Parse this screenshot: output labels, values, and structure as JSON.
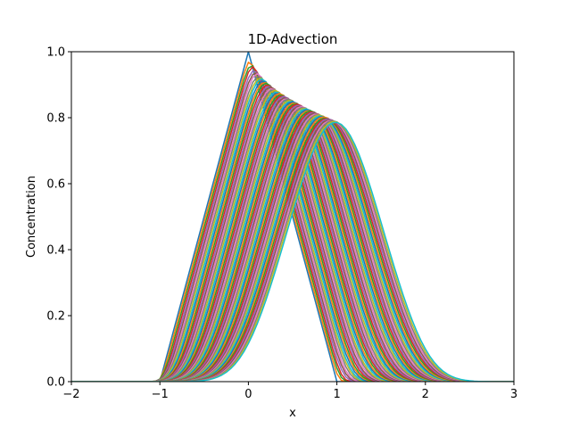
{
  "chart_data": {
    "type": "line",
    "title": "1D-Advection",
    "xlabel": "x",
    "ylabel": "Concentration",
    "xlim": [
      -2,
      3
    ],
    "ylim": [
      0.0,
      1.0
    ],
    "x_ticks": [
      "−2",
      "−1",
      "0",
      "1",
      "2",
      "3"
    ],
    "y_ticks": [
      "0.0",
      "0.2",
      "0.4",
      "0.6",
      "0.8",
      "1.0"
    ],
    "grid": false,
    "legend": "none",
    "initial_condition": {
      "shape": "triangle",
      "x": [
        -2,
        -1,
        0,
        1,
        3
      ],
      "y": [
        0,
        0,
        1,
        0,
        0
      ]
    },
    "time_steps": {
      "count": 60,
      "shift_per_step": 0.01667,
      "final_shift": 1.0,
      "peak_x": [
        0.0,
        1.0
      ],
      "peak_y": [
        1.0,
        0.78
      ],
      "final_support": [
        -1.0,
        2.7
      ]
    },
    "colors": [
      "#1f77b4",
      "#ff7f0e",
      "#2ca02c",
      "#d62728",
      "#9467bd",
      "#8c564b",
      "#e377c2",
      "#7f7f7f",
      "#bcbd22",
      "#17becf"
    ]
  }
}
